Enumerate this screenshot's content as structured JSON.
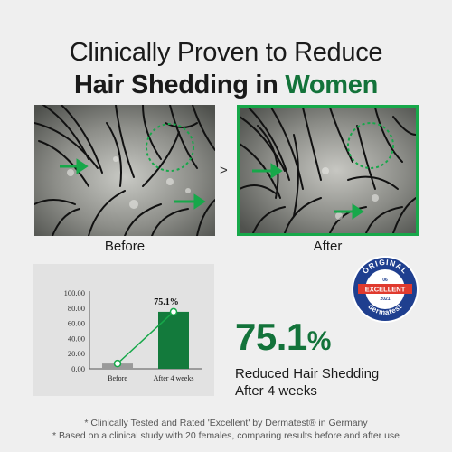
{
  "headline": {
    "line1": "Clinically Proven to Reduce",
    "line2_prefix": "Hair Shedding in",
    "line2_accent": "Women"
  },
  "photos": {
    "before_label": "Before",
    "after_label": "After",
    "separator": ">"
  },
  "colors": {
    "accent_green": "#13733a",
    "arrow_green": "#17a84a",
    "panel_bg": "#e2e2e2",
    "seal_blue": "#1f3f8f",
    "seal_red": "#e03a2e"
  },
  "chart_data": {
    "type": "bar",
    "categories": [
      "Before",
      "After 4 weeks"
    ],
    "values": [
      7,
      75.1
    ],
    "data_labels": [
      "",
      "75.1%"
    ],
    "y_tick_labels": [
      "100.00",
      "80.00",
      "60.00",
      "40.00",
      "20.00",
      "0.00"
    ],
    "ylim": [
      0,
      100
    ],
    "grid": false,
    "connector_line": true
  },
  "result": {
    "value": "75.1",
    "unit": "%",
    "desc_line1": "Reduced Hair Shedding",
    "desc_line2": "After 4 weeks"
  },
  "seal": {
    "top_text": "ORIGINAL",
    "rating_number": "06",
    "rating": "EXCELLENT",
    "year": "2021",
    "bottom_text": "dermatest"
  },
  "footnotes": {
    "line1": "* Clinically Tested and Rated 'Excellent' by Dermatest® in Germany",
    "line2": "* Based on a clinical study with 20 females, comparing results before and after use"
  }
}
